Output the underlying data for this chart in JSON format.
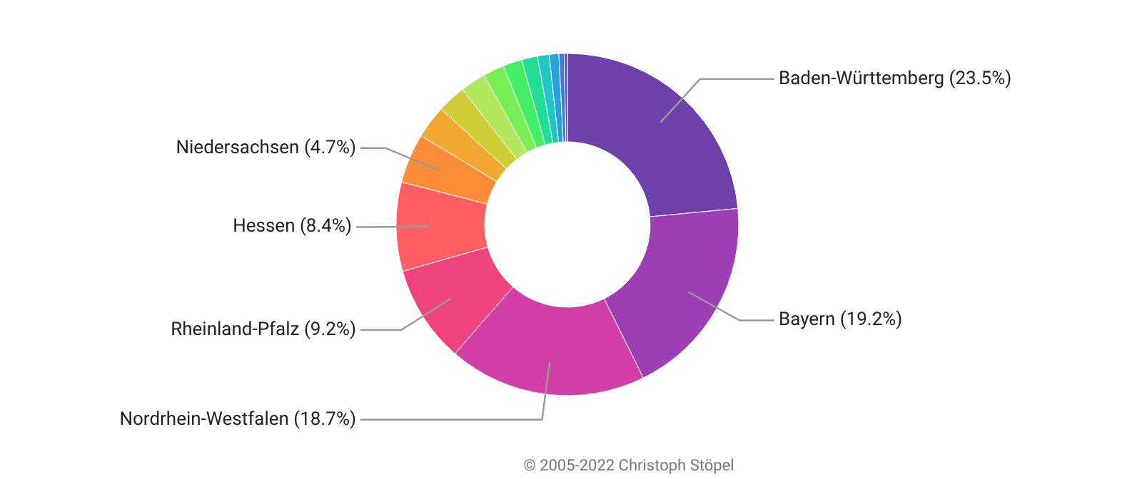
{
  "chart_data": {
    "type": "donut",
    "categories": [
      "Baden-Württemberg",
      "Bayern",
      "Nordrhein-Westfalen",
      "Rheinland-Pfalz",
      "Hessen",
      "Niedersachsen",
      null,
      null,
      null,
      null,
      null,
      null,
      null,
      null,
      null,
      null
    ],
    "values": [
      23.5,
      19.2,
      18.7,
      9.2,
      8.4,
      4.7,
      3.1,
      2.7,
      2.4,
      2.0,
      1.8,
      1.5,
      1.1,
      0.9,
      0.5,
      0.3
    ],
    "colors": [
      "#6e40aa",
      "#9f3fb5",
      "#d23fa6",
      "#f0447e",
      "#ff5e63",
      "#ff8c38",
      "#f0a830",
      "#cfcd36",
      "#b4e85c",
      "#78ee55",
      "#46ee68",
      "#22dd95",
      "#1fc8c4",
      "#2aa0db",
      "#3f7ae0",
      "#5a4ed0"
    ],
    "value_labels": [
      "(23.5%)",
      "(19.2%)",
      "(18.7%)",
      "(9.2%)",
      "(8.4%)",
      "(4.7%)",
      null,
      null,
      null,
      null,
      null,
      null,
      null,
      null,
      null,
      null
    ],
    "annotations": [
      "© 2005-2022 Christoph Stöpel"
    ]
  }
}
